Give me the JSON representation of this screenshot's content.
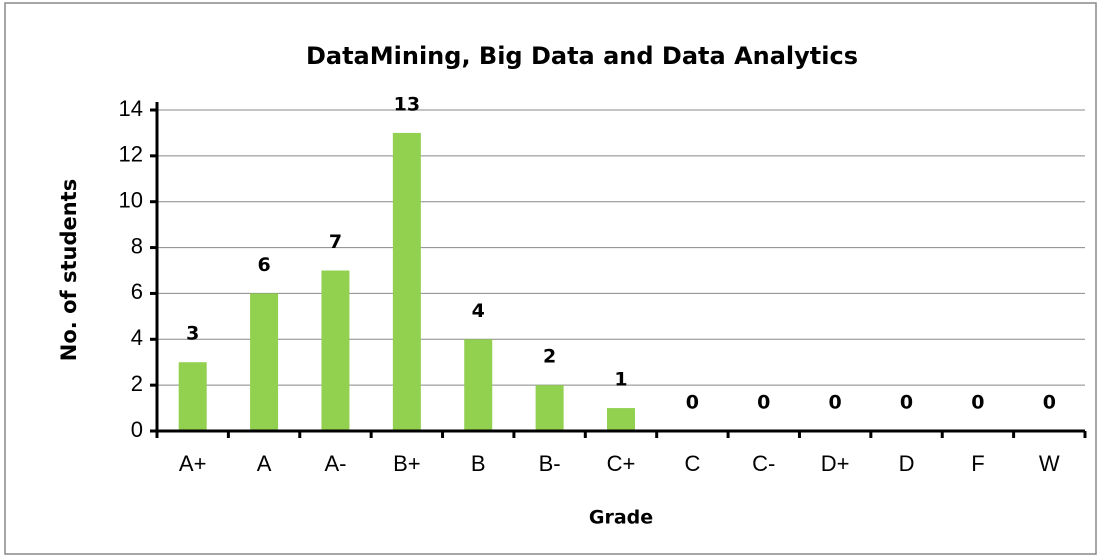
{
  "chart_data": {
    "type": "bar",
    "title": "DataMining, Big Data and Data Analytics",
    "x_label": "Grade",
    "y_label": "No. of students",
    "categories": [
      "A+",
      "A",
      "A-",
      "B+",
      "B",
      "B-",
      "C+",
      "C",
      "C-",
      "D+",
      "D",
      "F",
      "W"
    ],
    "values": [
      3,
      6,
      7,
      13,
      4,
      2,
      1,
      0,
      0,
      0,
      0,
      0,
      0
    ],
    "color": "#92d050",
    "ylim": [
      0,
      14
    ],
    "yticks": [
      0,
      2,
      4,
      6,
      8,
      10,
      12,
      14
    ],
    "grid": true
  }
}
